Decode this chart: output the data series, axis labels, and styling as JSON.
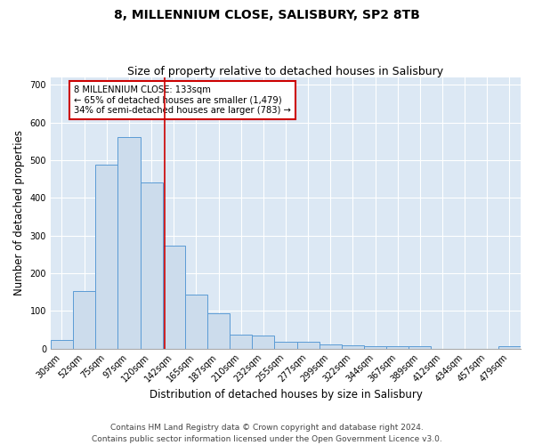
{
  "title": "8, MILLENNIUM CLOSE, SALISBURY, SP2 8TB",
  "subtitle": "Size of property relative to detached houses in Salisbury",
  "xlabel": "Distribution of detached houses by size in Salisbury",
  "ylabel": "Number of detached properties",
  "bar_labels": [
    "30sqm",
    "52sqm",
    "75sqm",
    "97sqm",
    "120sqm",
    "142sqm",
    "165sqm",
    "187sqm",
    "210sqm",
    "232sqm",
    "255sqm",
    "277sqm",
    "299sqm",
    "322sqm",
    "344sqm",
    "367sqm",
    "389sqm",
    "412sqm",
    "434sqm",
    "457sqm",
    "479sqm"
  ],
  "bar_values": [
    22,
    152,
    488,
    562,
    440,
    274,
    144,
    94,
    37,
    35,
    17,
    17,
    11,
    9,
    6,
    5,
    5,
    0,
    0,
    0,
    7
  ],
  "bar_color": "#ccdcec",
  "bar_edge_color": "#5b9bd5",
  "background_color": "#dce8f4",
  "fig_background": "#ffffff",
  "vline_color": "#cc0000",
  "annotation_text": "8 MILLENNIUM CLOSE: 133sqm\n← 65% of detached houses are smaller (1,479)\n34% of semi-detached houses are larger (783) →",
  "annotation_box_color": "#ffffff",
  "annotation_box_edge": "#cc0000",
  "ylim": [
    0,
    720
  ],
  "yticks": [
    0,
    100,
    200,
    300,
    400,
    500,
    600,
    700
  ],
  "footer": "Contains HM Land Registry data © Crown copyright and database right 2024.\nContains public sector information licensed under the Open Government Licence v3.0.",
  "title_fontsize": 10,
  "subtitle_fontsize": 9,
  "axis_label_fontsize": 8.5,
  "tick_fontsize": 7,
  "footer_fontsize": 6.5
}
